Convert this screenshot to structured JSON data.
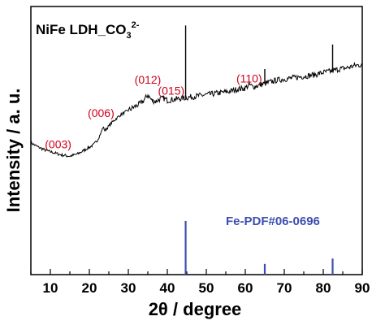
{
  "chart_data": {
    "type": "line",
    "title": "NiFe LDH_CO",
    "title_sub": "3",
    "title_sup": "2-",
    "xlabel": "2θ / degree",
    "ylabel": "Intensity / a. u.",
    "xlim": [
      5,
      90
    ],
    "x_ticks": [
      10,
      20,
      30,
      40,
      50,
      60,
      70,
      80,
      90
    ],
    "y_ticks_labeled": false,
    "grid": false,
    "colors": {
      "pattern": "#000000",
      "peak_label": "#d0021b",
      "reference": "#3b4fb0",
      "axis": "#000000"
    },
    "series": [
      {
        "x": [
          5,
          7,
          9,
          11,
          13,
          15,
          17,
          19,
          21,
          22,
          23,
          23.5,
          24,
          25,
          26,
          28,
          30,
          32,
          33,
          34,
          35,
          36,
          37,
          38,
          39,
          40,
          42,
          44,
          46,
          48,
          50,
          52,
          54,
          56,
          58,
          60,
          61,
          62,
          64,
          66,
          68,
          70,
          72,
          74,
          76,
          78,
          80,
          82,
          84,
          86,
          88,
          90
        ],
        "y": [
          38,
          34,
          31,
          29,
          27,
          26,
          28,
          32,
          36,
          40,
          47,
          52,
          49,
          53,
          57,
          63,
          67,
          71,
          73,
          76,
          81,
          76,
          75,
          77,
          78,
          76,
          77,
          78,
          79,
          80,
          81,
          82,
          83,
          84,
          86,
          87,
          90,
          88,
          90,
          92,
          94,
          95,
          96,
          97,
          98,
          99,
          101,
          102,
          104,
          105,
          107,
          108
        ]
      }
    ],
    "sharp_peaks": [
      {
        "x": 44.7,
        "top": 143
      },
      {
        "x": 65.0,
        "top": 104
      },
      {
        "x": 82.4,
        "top": 126
      }
    ],
    "peak_labels": [
      {
        "text": "(003)",
        "x": 12,
        "y": 33
      },
      {
        "text": "(006)",
        "x": 23,
        "y": 61
      },
      {
        "text": "(012)",
        "x": 35,
        "y": 91
      },
      {
        "text": "(015)",
        "x": 41,
        "y": 81
      },
      {
        "text": "(110)",
        "x": 61,
        "y": 92
      }
    ],
    "reference": {
      "label": "Fe-PDF#06-0696",
      "sticks": [
        {
          "x": 44.7,
          "intensity": 100
        },
        {
          "x": 65.0,
          "intensity": 20
        },
        {
          "x": 82.4,
          "intensity": 30
        }
      ]
    }
  }
}
